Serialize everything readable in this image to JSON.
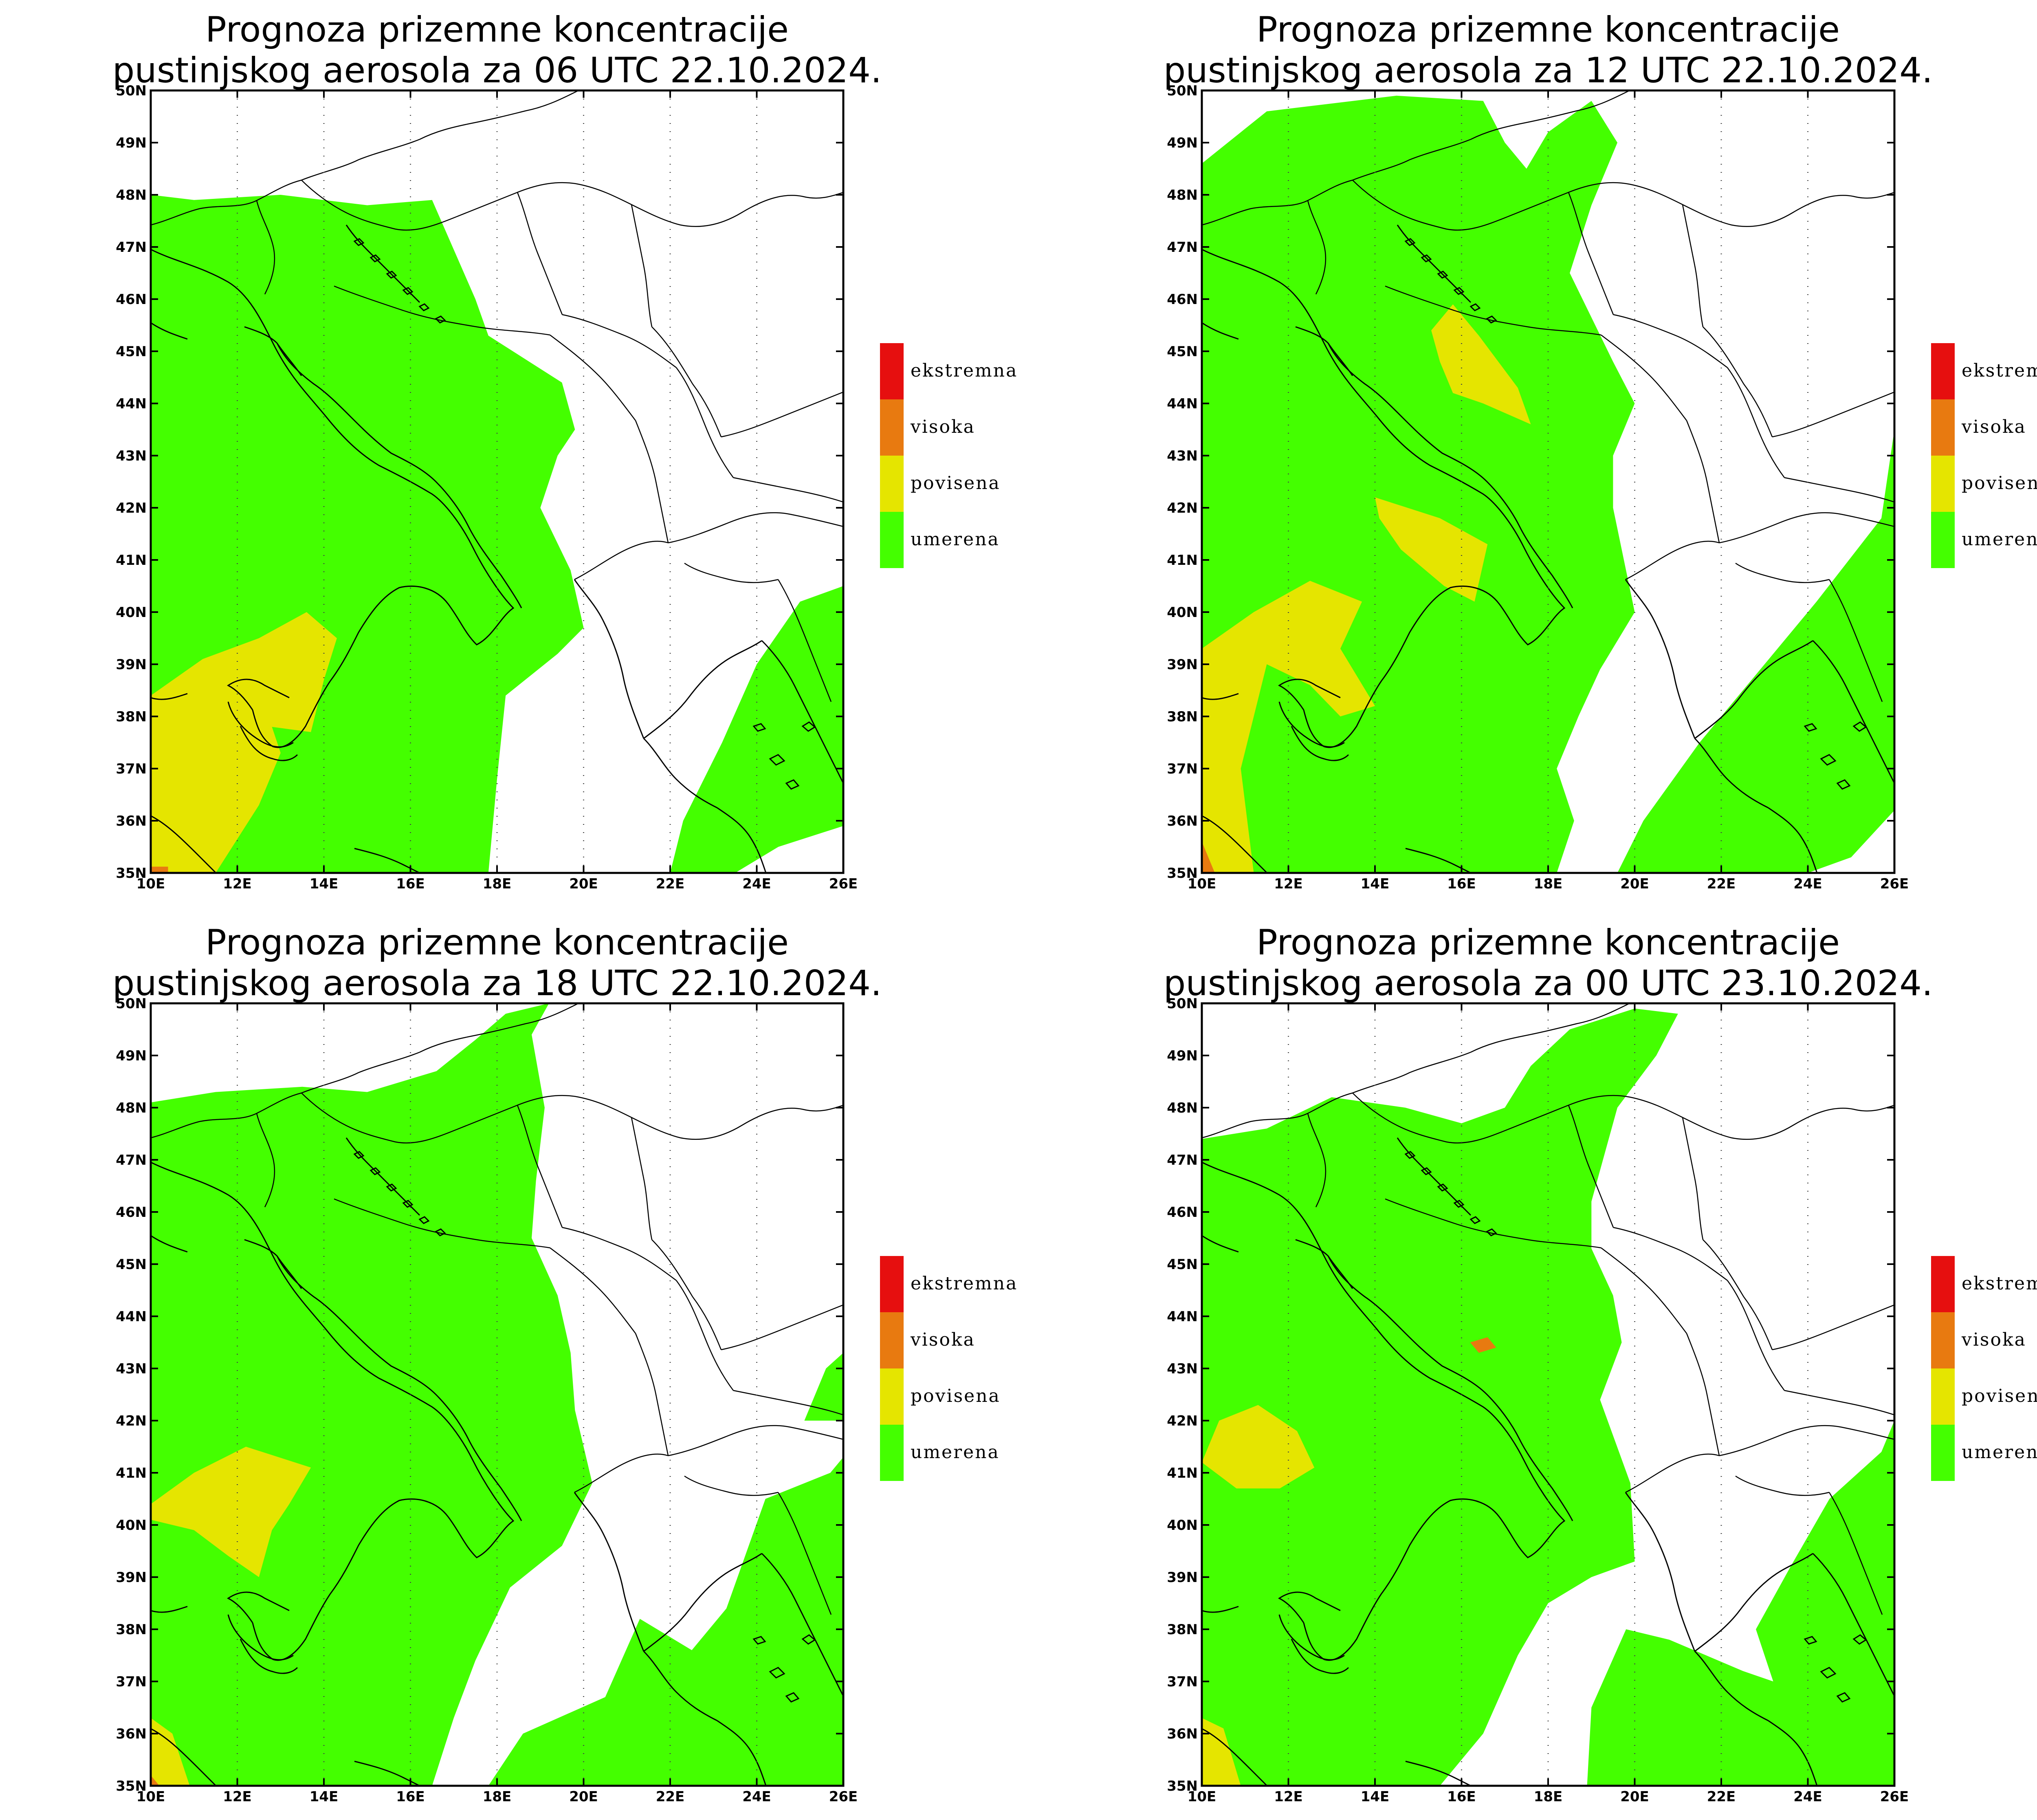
{
  "colors": {
    "umerena": "#44ff00",
    "povisena": "#e5e500",
    "visoka": "#e87a10",
    "ekstremna": "#e60f0f",
    "land": "#ffffff",
    "frame": "#000000"
  },
  "legend": [
    {
      "key": "ekstremna",
      "label": "ekstremna"
    },
    {
      "key": "visoka",
      "label": "visoka"
    },
    {
      "key": "povisena",
      "label": "povisena"
    },
    {
      "key": "umerena",
      "label": "umerena"
    }
  ],
  "axes": {
    "lat_labels": [
      "50N",
      "49N",
      "48N",
      "47N",
      "46N",
      "45N",
      "44N",
      "43N",
      "42N",
      "41N",
      "40N",
      "39N",
      "38N",
      "37N",
      "36N",
      "35N"
    ],
    "lon_labels": [
      "10E",
      "12E",
      "14E",
      "16E",
      "18E",
      "20E",
      "22E",
      "24E",
      "26E"
    ],
    "lat_range": [
      35,
      50
    ],
    "lon_range": [
      10,
      26
    ]
  },
  "panels": [
    {
      "id": "p06",
      "title_line1": "Prognoza prizemne koncentracije",
      "title_line2": "pustinjskog aerosola za 06 UTC 22.10.2024.",
      "areas": [
        {
          "level": "umerena",
          "points": [
            [
              10,
              48
            ],
            [
              11,
              47.9
            ],
            [
              13,
              48
            ],
            [
              15,
              47.8
            ],
            [
              16.5,
              47.9
            ],
            [
              17.5,
              46
            ],
            [
              17.8,
              45.3
            ],
            [
              19.5,
              44.4
            ],
            [
              19.8,
              43.5
            ],
            [
              19.4,
              43
            ],
            [
              19,
              42
            ],
            [
              19.7,
              40.8
            ],
            [
              20,
              39.7
            ],
            [
              19.4,
              39.2
            ],
            [
              18.2,
              38.4
            ],
            [
              18,
              36.8
            ],
            [
              17.8,
              35
            ],
            [
              10,
              35
            ]
          ]
        },
        {
          "level": "umerena",
          "points": [
            [
              22,
              35
            ],
            [
              22.3,
              36
            ],
            [
              23.2,
              37.5
            ],
            [
              24,
              39
            ],
            [
              25,
              40.2
            ],
            [
              26,
              40.5
            ],
            [
              26,
              35.9
            ],
            [
              24.5,
              35.5
            ],
            [
              23.5,
              35
            ]
          ]
        },
        {
          "level": "povisena",
          "points": [
            [
              10,
              35
            ],
            [
              10,
              38.4
            ],
            [
              11.2,
              39.1
            ],
            [
              12.5,
              39.5
            ],
            [
              13.6,
              40
            ],
            [
              14.3,
              39.5
            ],
            [
              14,
              38.7
            ],
            [
              13.7,
              37.7
            ],
            [
              12.8,
              37.8
            ],
            [
              13,
              37.3
            ],
            [
              12.5,
              36.3
            ],
            [
              11.5,
              35
            ],
            [
              10,
              35
            ]
          ]
        },
        {
          "level": "visoka",
          "points": [
            [
              10,
              35
            ],
            [
              10,
              35.12
            ],
            [
              10.4,
              35.12
            ],
            [
              10.4,
              35
            ]
          ]
        }
      ]
    },
    {
      "id": "p12",
      "title_line1": "Prognoza prizemne koncentracije",
      "title_line2": "pustinjskog aerosola za 12 UTC 22.10.2024.",
      "areas": [
        {
          "level": "umerena",
          "points": [
            [
              10,
              35
            ],
            [
              10,
              48.6
            ],
            [
              11.5,
              49.6
            ],
            [
              14.5,
              49.9
            ],
            [
              16.5,
              49.8
            ],
            [
              17,
              49
            ],
            [
              17.5,
              48.5
            ],
            [
              18,
              49.2
            ],
            [
              19,
              49.8
            ],
            [
              19.6,
              49
            ],
            [
              19,
              47.8
            ],
            [
              18.5,
              46.5
            ],
            [
              19.5,
              44.8
            ],
            [
              20,
              44
            ],
            [
              19.5,
              43
            ],
            [
              19.5,
              42
            ],
            [
              20,
              40
            ],
            [
              19.2,
              38.9
            ],
            [
              18.7,
              38
            ],
            [
              18.2,
              37
            ],
            [
              18.6,
              36
            ],
            [
              18.2,
              35
            ],
            [
              10,
              35
            ]
          ]
        },
        {
          "level": "umerena",
          "points": [
            [
              19.6,
              35
            ],
            [
              20.2,
              36
            ],
            [
              21.5,
              37.5
            ],
            [
              22.8,
              38.8
            ],
            [
              24.2,
              40.2
            ],
            [
              25.7,
              41.8
            ],
            [
              26,
              43.5
            ],
            [
              26,
              36.2
            ],
            [
              25,
              35.3
            ],
            [
              24,
              35
            ]
          ]
        },
        {
          "level": "povisena",
          "points": [
            [
              15.3,
              45.4
            ],
            [
              15.8,
              45.9
            ],
            [
              16.4,
              45.3
            ],
            [
              17.3,
              44.3
            ],
            [
              17.6,
              43.6
            ],
            [
              16.5,
              44
            ],
            [
              15.8,
              44.2
            ],
            [
              15.5,
              44.8
            ]
          ]
        },
        {
          "level": "povisena",
          "points": [
            [
              14,
              42.2
            ],
            [
              15.5,
              41.8
            ],
            [
              16.6,
              41.3
            ],
            [
              16.3,
              40.2
            ],
            [
              15.6,
              40.5
            ],
            [
              14.6,
              41.2
            ],
            [
              14.1,
              41.8
            ]
          ]
        },
        {
          "level": "povisena",
          "points": [
            [
              10,
              35
            ],
            [
              10,
              39.3
            ],
            [
              11.2,
              40
            ],
            [
              12.5,
              40.6
            ],
            [
              13.7,
              40.2
            ],
            [
              13.2,
              39.3
            ],
            [
              14,
              38.2
            ],
            [
              13.2,
              38
            ],
            [
              12.5,
              38.6
            ],
            [
              11.5,
              39
            ],
            [
              10.9,
              37
            ],
            [
              11.2,
              35
            ]
          ]
        },
        {
          "level": "visoka",
          "points": [
            [
              10,
              35
            ],
            [
              10,
              35.6
            ],
            [
              10.3,
              35
            ]
          ]
        }
      ]
    },
    {
      "id": "p18",
      "title_line1": "Prognoza prizemne koncentracije",
      "title_line2": "pustinjskog aerosola za 18 UTC 22.10.2024.",
      "areas": [
        {
          "level": "umerena",
          "points": [
            [
              10,
              35
            ],
            [
              10,
              48.1
            ],
            [
              11.5,
              48.3
            ],
            [
              13.5,
              48.4
            ],
            [
              15,
              48.3
            ],
            [
              16.6,
              48.7
            ],
            [
              17.5,
              49.3
            ],
            [
              18.2,
              49.8
            ],
            [
              19.2,
              50
            ],
            [
              18.8,
              49.4
            ],
            [
              19.1,
              48
            ],
            [
              18.9,
              46.6
            ],
            [
              18.8,
              45.5
            ],
            [
              19.4,
              44.4
            ],
            [
              19.7,
              43.3
            ],
            [
              19.8,
              42.2
            ],
            [
              20.2,
              40.8
            ],
            [
              19.5,
              39.6
            ],
            [
              18.3,
              38.8
            ],
            [
              17.5,
              37.4
            ],
            [
              17,
              36.3
            ],
            [
              16.5,
              35
            ],
            [
              10,
              35
            ]
          ]
        },
        {
          "level": "umerena",
          "points": [
            [
              17.8,
              35
            ],
            [
              18.6,
              36
            ],
            [
              20.5,
              36.7
            ],
            [
              21.3,
              38.2
            ],
            [
              22.5,
              37.6
            ],
            [
              23.3,
              38.4
            ],
            [
              24.2,
              40.5
            ],
            [
              25.7,
              41
            ],
            [
              26,
              41.3
            ],
            [
              26,
              35
            ]
          ]
        },
        {
          "level": "umerena",
          "points": [
            [
              25.1,
              42
            ],
            [
              25.6,
              43
            ],
            [
              26,
              43.3
            ],
            [
              26,
              42
            ]
          ]
        },
        {
          "level": "povisena",
          "points": [
            [
              10,
              40.4
            ],
            [
              11,
              41
            ],
            [
              12.2,
              41.5
            ],
            [
              13.7,
              41.1
            ],
            [
              13.2,
              40.4
            ],
            [
              12.8,
              39.9
            ],
            [
              12.5,
              39
            ],
            [
              11.8,
              39.4
            ],
            [
              11,
              39.9
            ],
            [
              10,
              40.1
            ]
          ]
        },
        {
          "level": "povisena",
          "points": [
            [
              10,
              35
            ],
            [
              10,
              36.3
            ],
            [
              10.5,
              36
            ],
            [
              10.9,
              35
            ]
          ]
        },
        {
          "level": "visoka",
          "points": [
            [
              10,
              35
            ],
            [
              10,
              35.2
            ],
            [
              10.2,
              35
            ]
          ]
        }
      ]
    },
    {
      "id": "p00",
      "title_line1": "Prognoza prizemne koncentracije",
      "title_line2": "pustinjskog aerosola za 00 UTC 23.10.2024.",
      "areas": [
        {
          "level": "umerena",
          "points": [
            [
              10,
              35
            ],
            [
              10,
              47.4
            ],
            [
              11.5,
              47.6
            ],
            [
              13,
              48.2
            ],
            [
              14.7,
              48
            ],
            [
              16,
              47.7
            ],
            [
              17,
              48
            ],
            [
              17.6,
              48.8
            ],
            [
              18.5,
              49.5
            ],
            [
              20,
              49.9
            ],
            [
              21,
              49.8
            ],
            [
              20.5,
              49
            ],
            [
              19.6,
              48
            ],
            [
              19,
              46.2
            ],
            [
              19,
              45.3
            ],
            [
              19.5,
              44.4
            ],
            [
              19.7,
              43.5
            ],
            [
              19.2,
              42.4
            ],
            [
              19.9,
              40.8
            ],
            [
              20,
              39.3
            ],
            [
              19,
              39
            ],
            [
              18,
              38.5
            ],
            [
              17.3,
              37.5
            ],
            [
              16.5,
              36
            ],
            [
              15.5,
              35
            ],
            [
              10,
              35
            ]
          ]
        },
        {
          "level": "umerena",
          "points": [
            [
              18.9,
              35
            ],
            [
              19,
              36.5
            ],
            [
              19.8,
              38
            ],
            [
              20.8,
              37.8
            ],
            [
              22.5,
              37.2
            ],
            [
              23.2,
              37
            ],
            [
              22.8,
              38
            ],
            [
              23.6,
              39.2
            ],
            [
              24.5,
              40.5
            ],
            [
              25.7,
              41.4
            ],
            [
              26,
              42
            ],
            [
              26,
              35
            ]
          ]
        },
        {
          "level": "povisena",
          "points": [
            [
              10,
              41.2
            ],
            [
              10.8,
              40.7
            ],
            [
              11.8,
              40.7
            ],
            [
              12.6,
              41.1
            ],
            [
              12.2,
              41.8
            ],
            [
              11.3,
              42.3
            ],
            [
              10.4,
              42
            ]
          ]
        },
        {
          "level": "povisena",
          "points": [
            [
              10,
              35
            ],
            [
              10,
              36.3
            ],
            [
              10.5,
              36.1
            ],
            [
              10.9,
              35
            ]
          ]
        },
        {
          "level": "visoka",
          "points": [
            [
              16.2,
              43.5
            ],
            [
              16.6,
              43.6
            ],
            [
              16.8,
              43.4
            ],
            [
              16.4,
              43.3
            ]
          ]
        }
      ]
    }
  ]
}
